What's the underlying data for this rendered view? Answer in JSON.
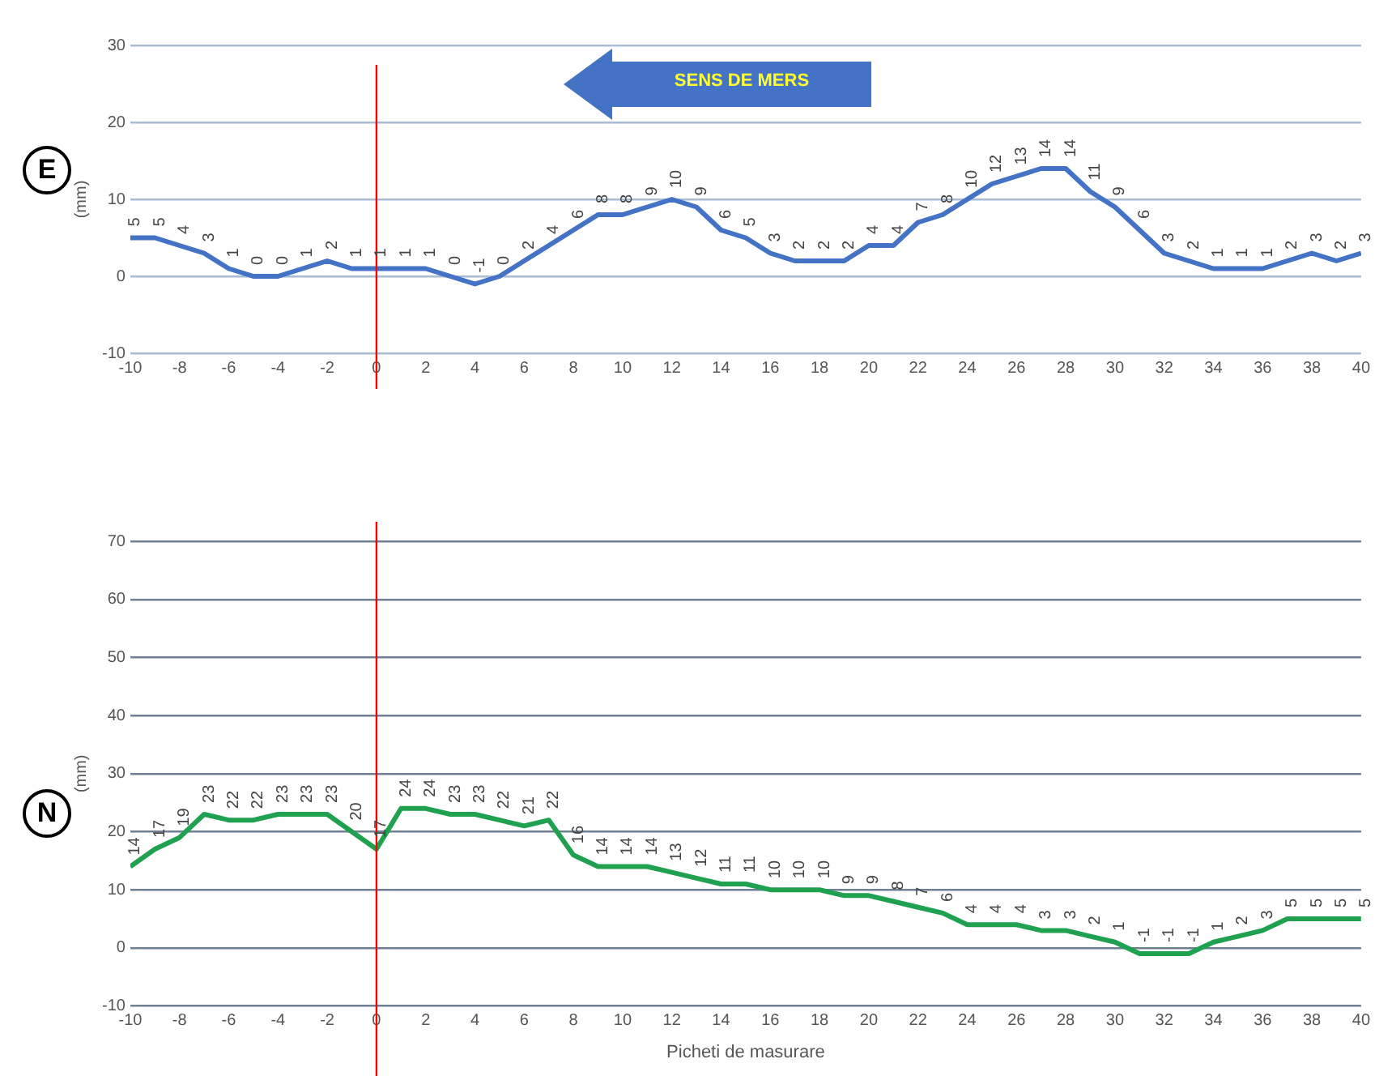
{
  "chart_data": [
    {
      "type": "line",
      "title": "E",
      "ylabel": "(mm)",
      "annotations": [
        "SENS DE MERS"
      ],
      "x": [
        -10,
        -9,
        -8,
        -7,
        -6,
        -5,
        -4,
        -3,
        -2,
        -1,
        0,
        1,
        2,
        3,
        4,
        5,
        6,
        7,
        8,
        9,
        10,
        11,
        12,
        13,
        14,
        15,
        16,
        17,
        18,
        19,
        20,
        21,
        22,
        23,
        24,
        25,
        26,
        27,
        28,
        29,
        30,
        31,
        32,
        33,
        34,
        35,
        36,
        37,
        38,
        39,
        40
      ],
      "series": [
        {
          "color": "#4472c4",
          "values": [
            5,
            5,
            4,
            3,
            1,
            0,
            0,
            1,
            2,
            1,
            1,
            1,
            1,
            0,
            -1,
            0,
            2,
            4,
            6,
            8,
            8,
            9,
            10,
            9,
            6,
            5,
            3,
            2,
            2,
            2,
            4,
            4,
            7,
            8,
            10,
            12,
            13,
            14,
            14,
            11,
            9,
            6,
            3,
            2,
            1,
            1,
            1,
            2,
            3,
            2,
            3
          ]
        }
      ],
      "xlim": [
        -10,
        40
      ],
      "xticks": [
        -10,
        -8,
        -6,
        -4,
        -2,
        0,
        2,
        4,
        6,
        8,
        10,
        12,
        14,
        16,
        18,
        20,
        22,
        24,
        26,
        28,
        30,
        32,
        34,
        36,
        38,
        40
      ],
      "ylim": [
        -10,
        30
      ],
      "yticks": [
        -10,
        0,
        10,
        20,
        30
      ],
      "grid": "y",
      "data_labels": true,
      "marker": "none",
      "legend": false,
      "ref_lines": [
        {
          "axis": "x",
          "value": 0,
          "color": "#ff0000"
        }
      ]
    },
    {
      "type": "line",
      "title": "N",
      "ylabel": "(mm)",
      "xlabel": "Picheti de masurare",
      "x": [
        -10,
        -9,
        -8,
        -7,
        -6,
        -5,
        -4,
        -3,
        -2,
        -1,
        0,
        1,
        2,
        3,
        4,
        5,
        6,
        7,
        8,
        9,
        10,
        11,
        12,
        13,
        14,
        15,
        16,
        17,
        18,
        19,
        20,
        21,
        22,
        23,
        24,
        25,
        26,
        27,
        28,
        29,
        30,
        31,
        32,
        33,
        34,
        35,
        36,
        37,
        38,
        39,
        40
      ],
      "series": [
        {
          "color": "#1fa150",
          "values": [
            14,
            17,
            19,
            23,
            22,
            22,
            23,
            23,
            23,
            20,
            17,
            24,
            24,
            23,
            23,
            22,
            21,
            22,
            16,
            14,
            14,
            14,
            13,
            12,
            11,
            11,
            10,
            10,
            10,
            9,
            9,
            8,
            7,
            6,
            4,
            4,
            4,
            3,
            3,
            2,
            1,
            -1,
            -1,
            -1,
            1,
            2,
            3,
            5,
            5,
            5,
            5
          ]
        }
      ],
      "xlim": [
        -10,
        40
      ],
      "xticks": [
        -10,
        -8,
        -6,
        -4,
        -2,
        0,
        2,
        4,
        6,
        8,
        10,
        12,
        14,
        16,
        18,
        20,
        22,
        24,
        26,
        28,
        30,
        32,
        34,
        36,
        38,
        40
      ],
      "ylim": [
        -10,
        70
      ],
      "yticks": [
        -10,
        0,
        10,
        20,
        30,
        40,
        50,
        60,
        70
      ],
      "grid": "y",
      "data_labels": true,
      "marker": "none",
      "legend": false,
      "ref_lines": [
        {
          "axis": "x",
          "value": 0,
          "color": "#ff0000"
        }
      ]
    }
  ]
}
